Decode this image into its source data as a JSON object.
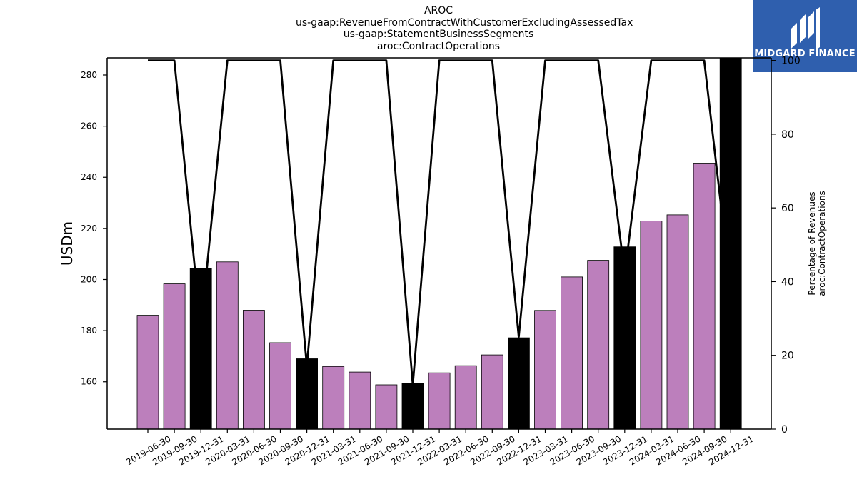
{
  "title_lines": [
    "AROC",
    "us-gaap:RevenueFromContractWithCustomerExcludingAssessedTax",
    "us-gaap:StatementBusinessSegments",
    "aroc:ContractOperations"
  ],
  "logo": {
    "text": "MIDGARD FINANCE",
    "background": "#2f5fae"
  },
  "chart_data": {
    "type": "bar",
    "categories": [
      "2019-06-30",
      "2019-09-30",
      "2019-12-31",
      "2020-03-31",
      "2020-06-30",
      "2020-09-30",
      "2020-12-31",
      "2021-03-31",
      "2021-06-30",
      "2021-09-30",
      "2021-12-31",
      "2022-03-31",
      "2022-06-30",
      "2022-09-30",
      "2022-12-31",
      "2023-03-31",
      "2023-06-30",
      "2023-09-30",
      "2023-12-31",
      "2024-03-31",
      "2024-06-30",
      "2024-09-30",
      "2024-12-31"
    ],
    "series": [
      {
        "type": "bar",
        "axis": "left",
        "values": [
          186,
          198.3,
          204.4,
          206.9,
          188,
          175.3,
          169,
          166,
          163.8,
          158.8,
          159.3,
          163.5,
          166.3,
          170.5,
          177.2,
          187.9,
          201,
          207.5,
          212.8,
          222.9,
          225.3,
          245.5,
          286.7
        ],
        "colors": [
          "#bc7fbc",
          "#bc7fbc",
          "#000000",
          "#bc7fbc",
          "#bc7fbc",
          "#bc7fbc",
          "#000000",
          "#bc7fbc",
          "#bc7fbc",
          "#bc7fbc",
          "#000000",
          "#bc7fbc",
          "#bc7fbc",
          "#bc7fbc",
          "#000000",
          "#bc7fbc",
          "#bc7fbc",
          "#bc7fbc",
          "#000000",
          "#bc7fbc",
          "#bc7fbc",
          "#bc7fbc",
          "#000000"
        ]
      },
      {
        "type": "line",
        "axis": "right",
        "values": [
          100,
          100,
          27,
          100,
          100,
          100,
          17,
          100,
          100,
          100,
          12,
          100,
          100,
          100,
          25,
          100,
          100,
          100,
          42,
          100,
          100,
          100,
          38
        ],
        "color": "#000000"
      }
    ],
    "ylabel": "USDm",
    "y2label": [
      "Percentage of Revenues",
      "aroc:ContractOperations"
    ],
    "ylim": [
      141.5,
      286.7
    ],
    "y_ticks": [
      160,
      180,
      200,
      220,
      240,
      260,
      280
    ],
    "y2lim": [
      0,
      100.7
    ],
    "y2_ticks": [
      0,
      20,
      40,
      60,
      80,
      100
    ],
    "grid": false,
    "legend": "none"
  }
}
